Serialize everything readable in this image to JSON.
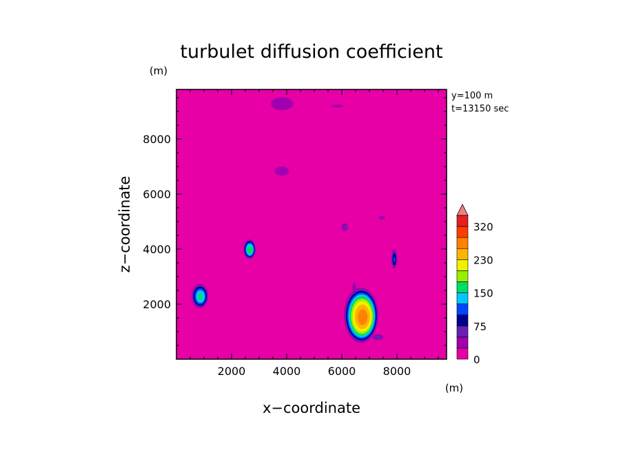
{
  "chart_data": {
    "type": "heatmap",
    "title": "turbulet diffusion coefficient",
    "xlabel": "x−coordinate",
    "ylabel": "z−coordinate",
    "x_unit": "(m)",
    "y_unit": "(m)",
    "annotations": [
      "y=100 m",
      "t=13150 sec"
    ],
    "xlim": [
      0,
      9800
    ],
    "ylim": [
      0,
      9800
    ],
    "x_ticks": [
      2000,
      4000,
      6000,
      8000
    ],
    "x_tick_labels": [
      "2000",
      "4000",
      "6000",
      "8000"
    ],
    "y_ticks": [
      2000,
      4000,
      6000,
      8000
    ],
    "y_tick_labels": [
      "2000",
      "4000",
      "6000",
      "8000"
    ],
    "background_level": 0,
    "colorbar": {
      "levels": [
        0,
        25,
        50,
        75,
        100,
        125,
        150,
        175,
        200,
        230,
        260,
        290,
        320
      ],
      "colors": [
        "#e600a6",
        "#a000b0",
        "#6a1eb4",
        "#00008c",
        "#0046ff",
        "#00c8ff",
        "#00dc64",
        "#96f000",
        "#f0f000",
        "#ffb400",
        "#ff8200",
        "#ff3c00",
        "#e61e1e"
      ],
      "extend_color": "#f08080",
      "tick_labels": [
        {
          "value": 0,
          "label": "0"
        },
        {
          "value": 75,
          "label": "75"
        },
        {
          "value": 150,
          "label": "150"
        },
        {
          "value": 230,
          "label": "230"
        },
        {
          "value": 320,
          "label": "320"
        }
      ]
    },
    "features": [
      {
        "name": "plume-right",
        "cx": 6700,
        "cz": 1600,
        "rx": 650,
        "rz": 1050,
        "peak": 260
      },
      {
        "name": "plume-left",
        "cx": 850,
        "cz": 2300,
        "rx": 330,
        "rz": 480,
        "peak": 150
      },
      {
        "name": "plume-mid",
        "cx": 2650,
        "cz": 4000,
        "rx": 240,
        "rz": 380,
        "peak": 170
      },
      {
        "name": "patch-7900",
        "cx": 7900,
        "cz": 3650,
        "rx": 120,
        "rz": 400,
        "peak": 100
      },
      {
        "name": "patch-6100",
        "cx": 6100,
        "cz": 4800,
        "rx": 150,
        "rz": 180,
        "peak": 60
      },
      {
        "name": "patch-6450",
        "cx": 6450,
        "cz": 2600,
        "rx": 90,
        "rz": 230,
        "peak": 55
      },
      {
        "name": "patch-7200",
        "cx": 7300,
        "cz": 800,
        "rx": 250,
        "rz": 130,
        "peak": 65
      },
      {
        "name": "patch-top",
        "cx": 3800,
        "cz": 9300,
        "rx": 700,
        "rz": 400,
        "peak": 35
      },
      {
        "name": "patch-6900",
        "cx": 3800,
        "cz": 6850,
        "rx": 450,
        "rz": 280,
        "peak": 35
      },
      {
        "name": "patch-top-right",
        "cx": 5800,
        "cz": 9200,
        "rx": 450,
        "rz": 100,
        "peak": 30
      },
      {
        "name": "patch-5200",
        "cx": 7450,
        "cz": 5150,
        "rx": 200,
        "rz": 120,
        "peak": 35
      }
    ]
  }
}
